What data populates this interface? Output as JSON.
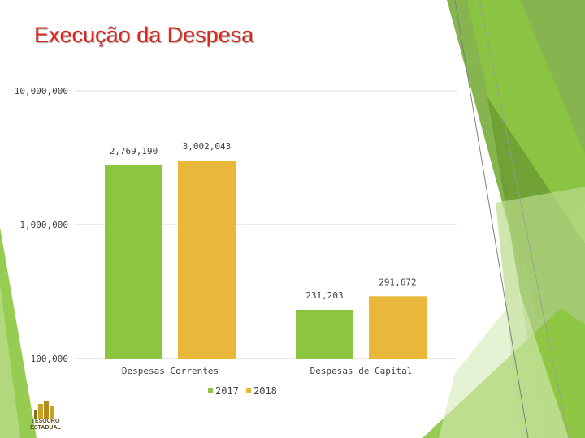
{
  "slide": {
    "title": "Execução da Despesa"
  },
  "logo": {
    "line1": "TESOURO",
    "line2": "ESTADUAL"
  },
  "colors": {
    "series_2017": "#8cc63f",
    "series_2018": "#e9b83a",
    "title": "#d9281e",
    "accent_green": "#6fa83a"
  },
  "chart_data": {
    "type": "bar",
    "scale": "log",
    "categories": [
      "Despesas Correntes",
      "Despesas de Capital"
    ],
    "series": [
      {
        "name": "2017",
        "values": [
          2769190,
          231203
        ],
        "labels": [
          "2,769,190",
          "231,203"
        ]
      },
      {
        "name": "2018",
        "values": [
          3002043,
          291672
        ],
        "labels": [
          "3,002,043",
          "291,672"
        ]
      }
    ],
    "ylim": [
      100000,
      10000000
    ],
    "yticks": [
      100000,
      1000000,
      10000000
    ],
    "ytick_labels": [
      "100,000",
      "1,000,000",
      "10,000,000"
    ],
    "grid": true,
    "legend_position": "bottom"
  }
}
